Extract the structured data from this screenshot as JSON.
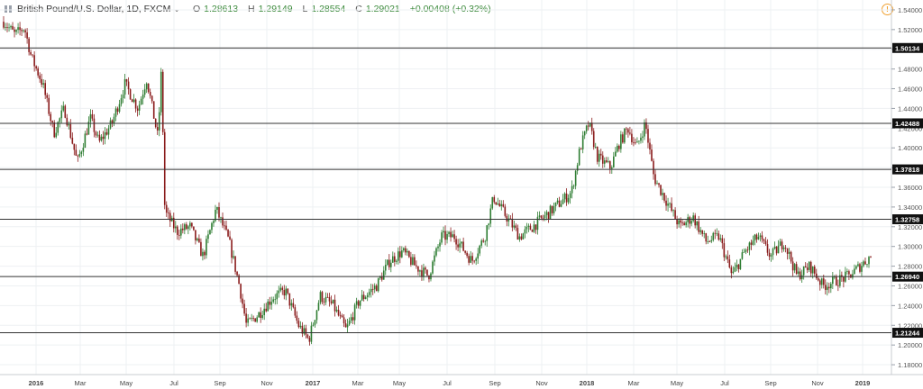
{
  "header": {
    "title": "British Pound/U.S. Dollar, 1D, FXCM",
    "open_label": "O",
    "open": "1.28613",
    "high_label": "H",
    "high": "1.29149",
    "low_label": "L",
    "low": "1.28554",
    "close_label": "C",
    "close": "1.29021",
    "change": "+0.00408 (+0.32%)"
  },
  "chart_data": {
    "type": "candlestick",
    "symbol": "GBPUSD",
    "timeframe": "1D",
    "ylim": [
      1.17,
      1.55
    ],
    "y_ticks": [
      1.18,
      1.2,
      1.22,
      1.24,
      1.26,
      1.28,
      1.3,
      1.32,
      1.34,
      1.36,
      1.38,
      1.4,
      1.42,
      1.44,
      1.46,
      1.48,
      1.5,
      1.52,
      1.54
    ],
    "x_ticks": [
      {
        "label": "2016",
        "bold": true
      },
      {
        "label": "Mar"
      },
      {
        "label": "May"
      },
      {
        "label": "Jul"
      },
      {
        "label": "Sep"
      },
      {
        "label": "Nov"
      },
      {
        "label": "2017",
        "bold": true
      },
      {
        "label": "Mar"
      },
      {
        "label": "May"
      },
      {
        "label": "Jul"
      },
      {
        "label": "Sep"
      },
      {
        "label": "Nov"
      },
      {
        "label": "2018",
        "bold": true
      },
      {
        "label": "Mar"
      },
      {
        "label": "May"
      },
      {
        "label": "Jul"
      },
      {
        "label": "Sep"
      },
      {
        "label": "Nov"
      },
      {
        "label": "2019",
        "bold": true
      }
    ],
    "horizontal_levels": [
      1.50134,
      1.42488,
      1.37818,
      1.32758,
      1.2694,
      1.21244
    ],
    "level_labels": [
      "1.50134",
      "1.42488",
      "1.37818",
      "1.32758",
      "1.26940",
      "1.21244"
    ],
    "price_path": [
      [
        0,
        1.528
      ],
      [
        0.013,
        1.515
      ],
      [
        0.024,
        1.522
      ],
      [
        0.032,
        1.492
      ],
      [
        0.045,
        1.465
      ],
      [
        0.058,
        1.415
      ],
      [
        0.07,
        1.44
      ],
      [
        0.085,
        1.385
      ],
      [
        0.1,
        1.43
      ],
      [
        0.11,
        1.405
      ],
      [
        0.125,
        1.425
      ],
      [
        0.14,
        1.465
      ],
      [
        0.155,
        1.44
      ],
      [
        0.165,
        1.47
      ],
      [
        0.178,
        1.41
      ],
      [
        0.182,
        1.48
      ],
      [
        0.186,
        1.335
      ],
      [
        0.2,
        1.315
      ],
      [
        0.215,
        1.32
      ],
      [
        0.23,
        1.29
      ],
      [
        0.245,
        1.338
      ],
      [
        0.26,
        1.305
      ],
      [
        0.272,
        1.26
      ],
      [
        0.28,
        1.22
      ],
      [
        0.295,
        1.232
      ],
      [
        0.31,
        1.248
      ],
      [
        0.325,
        1.255
      ],
      [
        0.34,
        1.22
      ],
      [
        0.352,
        1.205
      ],
      [
        0.365,
        1.25
      ],
      [
        0.38,
        1.24
      ],
      [
        0.395,
        1.215
      ],
      [
        0.41,
        1.245
      ],
      [
        0.43,
        1.26
      ],
      [
        0.445,
        1.285
      ],
      [
        0.46,
        1.295
      ],
      [
        0.475,
        1.28
      ],
      [
        0.49,
        1.27
      ],
      [
        0.505,
        1.31
      ],
      [
        0.52,
        1.31
      ],
      [
        0.54,
        1.285
      ],
      [
        0.555,
        1.31
      ],
      [
        0.565,
        1.35
      ],
      [
        0.58,
        1.33
      ],
      [
        0.595,
        1.31
      ],
      [
        0.61,
        1.32
      ],
      [
        0.63,
        1.335
      ],
      [
        0.655,
        1.355
      ],
      [
        0.665,
        1.4
      ],
      [
        0.675,
        1.425
      ],
      [
        0.685,
        1.39
      ],
      [
        0.7,
        1.38
      ],
      [
        0.71,
        1.405
      ],
      [
        0.72,
        1.42
      ],
      [
        0.73,
        1.4
      ],
      [
        0.74,
        1.425
      ],
      [
        0.75,
        1.37
      ],
      [
        0.765,
        1.345
      ],
      [
        0.78,
        1.32
      ],
      [
        0.795,
        1.33
      ],
      [
        0.81,
        1.305
      ],
      [
        0.825,
        1.31
      ],
      [
        0.84,
        1.27
      ],
      [
        0.855,
        1.295
      ],
      [
        0.87,
        1.31
      ],
      [
        0.885,
        1.29
      ],
      [
        0.9,
        1.305
      ],
      [
        0.915,
        1.27
      ],
      [
        0.93,
        1.28
      ],
      [
        0.945,
        1.26
      ],
      [
        0.96,
        1.265
      ],
      [
        0.975,
        1.27
      ],
      [
        1.0,
        1.29
      ]
    ]
  },
  "icons": {
    "symbol": "bars-icon",
    "info": "warning-icon"
  },
  "colors": {
    "up": "#2e7d32",
    "down": "#8a1c1c",
    "level_line": "#333333",
    "grid": "#eef0f3"
  }
}
